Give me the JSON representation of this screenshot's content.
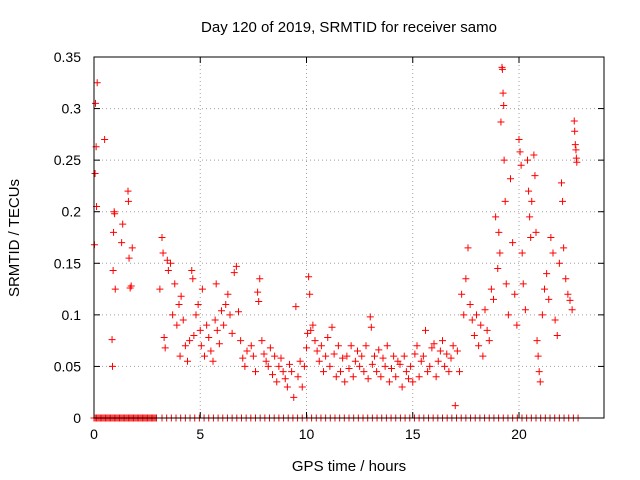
{
  "chart_data": {
    "type": "scatter",
    "title": "Day 120 of 2019, SRMTID for receiver samo",
    "xlabel": "GPS time / hours",
    "ylabel": "SRMTID / TECUs",
    "xlim": [
      0,
      24
    ],
    "ylim": [
      0,
      0.35
    ],
    "grid": true,
    "marker": "+",
    "color": "#ff0000",
    "x_ticks": [
      0,
      5,
      10,
      15,
      20
    ],
    "x_tick_labels": [
      "0",
      "5",
      "10",
      "15",
      "20"
    ],
    "y_ticks": [
      0,
      0.05,
      0.1,
      0.15,
      0.2,
      0.25,
      0.3,
      0.35
    ],
    "y_tick_labels": [
      "0",
      "0.05",
      "0.1",
      "0.15",
      "0.2",
      "0.25",
      "0.3",
      "0.35"
    ],
    "series": [
      {
        "name": "SRMTID",
        "points": [
          [
            0.02,
            0.168
          ],
          [
            0.05,
            0.237
          ],
          [
            0.07,
            0.305
          ],
          [
            0.1,
            0.263
          ],
          [
            0.12,
            0.205
          ],
          [
            0.15,
            0.325
          ],
          [
            0.5,
            0.27
          ],
          [
            0.85,
            0.076
          ],
          [
            0.87,
            0.05
          ],
          [
            0.9,
            0.143
          ],
          [
            0.92,
            0.18
          ],
          [
            0.95,
            0.2
          ],
          [
            0.97,
            0.198
          ],
          [
            1.0,
            0.125
          ],
          [
            1.3,
            0.17
          ],
          [
            1.35,
            0.188
          ],
          [
            1.6,
            0.22
          ],
          [
            1.62,
            0.21
          ],
          [
            1.65,
            0.155
          ],
          [
            1.7,
            0.126
          ],
          [
            1.75,
            0.128
          ],
          [
            1.8,
            0.165
          ],
          [
            3.1,
            0.125
          ],
          [
            3.2,
            0.175
          ],
          [
            3.25,
            0.16
          ],
          [
            3.3,
            0.078
          ],
          [
            3.35,
            0.068
          ],
          [
            3.45,
            0.153
          ],
          [
            3.5,
            0.143
          ],
          [
            3.6,
            0.15
          ],
          [
            3.7,
            0.1
          ],
          [
            3.8,
            0.13
          ],
          [
            3.9,
            0.09
          ],
          [
            4.0,
            0.11
          ],
          [
            4.05,
            0.06
          ],
          [
            4.1,
            0.118
          ],
          [
            4.2,
            0.095
          ],
          [
            4.3,
            0.07
          ],
          [
            4.4,
            0.055
          ],
          [
            4.5,
            0.075
          ],
          [
            4.6,
            0.143
          ],
          [
            4.65,
            0.135
          ],
          [
            4.7,
            0.08
          ],
          [
            4.8,
            0.1
          ],
          [
            4.9,
            0.11
          ],
          [
            5.0,
            0.085
          ],
          [
            5.05,
            0.07
          ],
          [
            5.1,
            0.125
          ],
          [
            5.2,
            0.06
          ],
          [
            5.3,
            0.09
          ],
          [
            5.4,
            0.078
          ],
          [
            5.5,
            0.065
          ],
          [
            5.6,
            0.055
          ],
          [
            5.7,
            0.095
          ],
          [
            5.75,
            0.13
          ],
          [
            5.8,
            0.085
          ],
          [
            5.9,
            0.072
          ],
          [
            6.0,
            0.104
          ],
          [
            6.1,
            0.09
          ],
          [
            6.2,
            0.11
          ],
          [
            6.3,
            0.12
          ],
          [
            6.4,
            0.1
          ],
          [
            6.5,
            0.082
          ],
          [
            6.6,
            0.141
          ],
          [
            6.7,
            0.147
          ],
          [
            6.8,
            0.103
          ],
          [
            6.9,
            0.075
          ],
          [
            7.0,
            0.058
          ],
          [
            7.1,
            0.05
          ],
          [
            7.2,
            0.065
          ],
          [
            7.4,
            0.07
          ],
          [
            7.5,
            0.06
          ],
          [
            7.6,
            0.045
          ],
          [
            7.7,
            0.122
          ],
          [
            7.75,
            0.113
          ],
          [
            7.8,
            0.135
          ],
          [
            7.9,
            0.075
          ],
          [
            8.0,
            0.062
          ],
          [
            8.1,
            0.055
          ],
          [
            8.2,
            0.05
          ],
          [
            8.3,
            0.068
          ],
          [
            8.4,
            0.042
          ],
          [
            8.5,
            0.06
          ],
          [
            8.6,
            0.035
          ],
          [
            8.7,
            0.05
          ],
          [
            8.8,
            0.058
          ],
          [
            8.9,
            0.045
          ],
          [
            9.0,
            0.038
          ],
          [
            9.1,
            0.03
          ],
          [
            9.2,
            0.052
          ],
          [
            9.3,
            0.045
          ],
          [
            9.4,
            0.02
          ],
          [
            9.5,
            0.108
          ],
          [
            9.6,
            0.04
          ],
          [
            9.7,
            0.055
          ],
          [
            9.8,
            0.03
          ],
          [
            9.9,
            0.05
          ],
          [
            10.0,
            0.068
          ],
          [
            10.05,
            0.082
          ],
          [
            10.1,
            0.137
          ],
          [
            10.15,
            0.12
          ],
          [
            10.2,
            0.085
          ],
          [
            10.3,
            0.09
          ],
          [
            10.4,
            0.075
          ],
          [
            10.5,
            0.065
          ],
          [
            10.6,
            0.055
          ],
          [
            10.7,
            0.07
          ],
          [
            10.8,
            0.045
          ],
          [
            10.9,
            0.06
          ],
          [
            11.0,
            0.078
          ],
          [
            11.1,
            0.05
          ],
          [
            11.2,
            0.088
          ],
          [
            11.3,
            0.062
          ],
          [
            11.4,
            0.04
          ],
          [
            11.5,
            0.07
          ],
          [
            11.6,
            0.045
          ],
          [
            11.7,
            0.058
          ],
          [
            11.8,
            0.035
          ],
          [
            11.9,
            0.06
          ],
          [
            12.0,
            0.048
          ],
          [
            12.1,
            0.07
          ],
          [
            12.2,
            0.04
          ],
          [
            12.3,
            0.055
          ],
          [
            12.4,
            0.065
          ],
          [
            12.5,
            0.05
          ],
          [
            12.6,
            0.06
          ],
          [
            12.7,
            0.045
          ],
          [
            12.8,
            0.07
          ],
          [
            12.9,
            0.038
          ],
          [
            13.0,
            0.098
          ],
          [
            13.05,
            0.088
          ],
          [
            13.1,
            0.052
          ],
          [
            13.2,
            0.06
          ],
          [
            13.3,
            0.045
          ],
          [
            13.4,
            0.066
          ],
          [
            13.5,
            0.04
          ],
          [
            13.6,
            0.058
          ],
          [
            13.7,
            0.05
          ],
          [
            13.8,
            0.07
          ],
          [
            13.9,
            0.035
          ],
          [
            14.0,
            0.048
          ],
          [
            14.1,
            0.06
          ],
          [
            14.2,
            0.04
          ],
          [
            14.3,
            0.055
          ],
          [
            14.4,
            0.052
          ],
          [
            14.5,
            0.03
          ],
          [
            14.6,
            0.06
          ],
          [
            14.7,
            0.045
          ],
          [
            14.8,
            0.038
          ],
          [
            14.9,
            0.05
          ],
          [
            15.0,
            0.035
          ],
          [
            15.1,
            0.062
          ],
          [
            15.2,
            0.07
          ],
          [
            15.3,
            0.04
          ],
          [
            15.4,
            0.055
          ],
          [
            15.5,
            0.06
          ],
          [
            15.6,
            0.085
          ],
          [
            15.7,
            0.045
          ],
          [
            15.8,
            0.05
          ],
          [
            15.9,
            0.068
          ],
          [
            16.0,
            0.072
          ],
          [
            16.1,
            0.04
          ],
          [
            16.2,
            0.055
          ],
          [
            16.3,
            0.065
          ],
          [
            16.4,
            0.075
          ],
          [
            16.5,
            0.05
          ],
          [
            16.6,
            0.062
          ],
          [
            16.7,
            0.045
          ],
          [
            16.8,
            0.058
          ],
          [
            16.9,
            0.07
          ],
          [
            17.0,
            0.012
          ],
          [
            17.1,
            0.065
          ],
          [
            17.2,
            0.045
          ],
          [
            17.3,
            0.12
          ],
          [
            17.4,
            0.1
          ],
          [
            17.5,
            0.135
          ],
          [
            17.6,
            0.165
          ],
          [
            17.7,
            0.11
          ],
          [
            17.8,
            0.095
          ],
          [
            17.9,
            0.08
          ],
          [
            18.0,
            0.1
          ],
          [
            18.1,
            0.07
          ],
          [
            18.2,
            0.09
          ],
          [
            18.3,
            0.06
          ],
          [
            18.4,
            0.105
          ],
          [
            18.5,
            0.085
          ],
          [
            18.6,
            0.075
          ],
          [
            18.7,
            0.125
          ],
          [
            18.8,
            0.115
          ],
          [
            18.9,
            0.195
          ],
          [
            19.0,
            0.145
          ],
          [
            19.05,
            0.18
          ],
          [
            19.1,
            0.16
          ],
          [
            19.15,
            0.287
          ],
          [
            19.2,
            0.34
          ],
          [
            19.22,
            0.338
          ],
          [
            19.25,
            0.315
          ],
          [
            19.28,
            0.303
          ],
          [
            19.3,
            0.25
          ],
          [
            19.35,
            0.21
          ],
          [
            19.4,
            0.13
          ],
          [
            19.5,
            0.1
          ],
          [
            19.6,
            0.232
          ],
          [
            19.7,
            0.17
          ],
          [
            19.8,
            0.12
          ],
          [
            19.9,
            0.09
          ],
          [
            20.0,
            0.27
          ],
          [
            20.05,
            0.258
          ],
          [
            20.1,
            0.245
          ],
          [
            20.15,
            0.16
          ],
          [
            20.2,
            0.13
          ],
          [
            20.3,
            0.105
          ],
          [
            20.4,
            0.25
          ],
          [
            20.45,
            0.22
          ],
          [
            20.5,
            0.195
          ],
          [
            20.55,
            0.175
          ],
          [
            20.6,
            0.21
          ],
          [
            20.7,
            0.255
          ],
          [
            20.75,
            0.235
          ],
          [
            20.8,
            0.18
          ],
          [
            20.85,
            0.075
          ],
          [
            20.9,
            0.06
          ],
          [
            20.95,
            0.045
          ],
          [
            21.0,
            0.035
          ],
          [
            21.1,
            0.1
          ],
          [
            21.2,
            0.125
          ],
          [
            21.3,
            0.14
          ],
          [
            21.4,
            0.115
          ],
          [
            21.5,
            0.175
          ],
          [
            21.6,
            0.16
          ],
          [
            21.7,
            0.095
          ],
          [
            21.8,
            0.08
          ],
          [
            21.9,
            0.15
          ],
          [
            22.0,
            0.228
          ],
          [
            22.05,
            0.21
          ],
          [
            22.1,
            0.165
          ],
          [
            22.2,
            0.135
          ],
          [
            22.3,
            0.12
          ],
          [
            22.4,
            0.114
          ],
          [
            22.5,
            0.105
          ],
          [
            22.6,
            0.288
          ],
          [
            22.62,
            0.278
          ],
          [
            22.65,
            0.265
          ],
          [
            22.68,
            0.26
          ],
          [
            22.7,
            0.252
          ],
          [
            22.72,
            0.248
          ]
        ]
      }
    ]
  }
}
